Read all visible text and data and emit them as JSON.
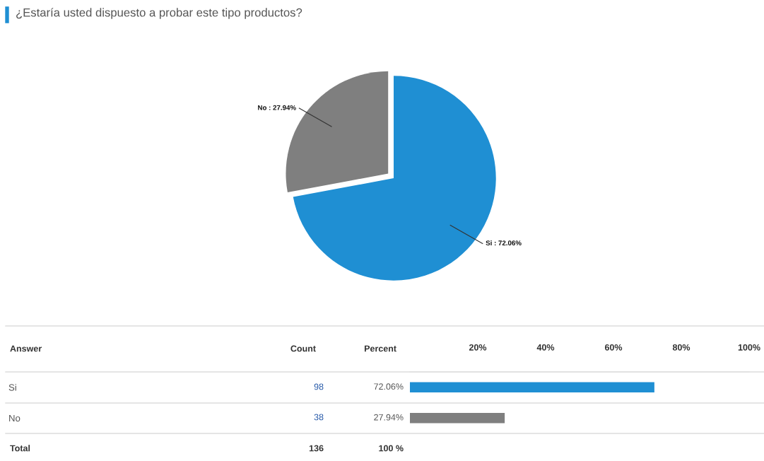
{
  "chart_data": [
    {
      "type": "pie",
      "title": "¿Estaría usted dispuesto a probar este tipo productos?",
      "categories": [
        "Si : 72.06%",
        "No : 27.94%"
      ],
      "values": [
        72.06,
        27.94
      ],
      "colors": [
        "#1f8fd3",
        "#7f7f7f"
      ]
    },
    {
      "type": "bar",
      "orientation": "horizontal",
      "categories": [
        "Si",
        "No"
      ],
      "values": [
        72.06,
        27.94
      ],
      "colors": [
        "#1f8fd3",
        "#7f7f7f"
      ],
      "value_labels": [
        "72.06%",
        "27.94%"
      ],
      "x2lim": [
        0,
        100
      ],
      "x2ticks": [
        {
          "value": 20,
          "label": "20%"
        },
        {
          "value": 40,
          "label": "40%"
        },
        {
          "value": 60,
          "label": "60%"
        },
        {
          "value": 80,
          "label": "80%"
        },
        {
          "value": 100,
          "label": "100%"
        }
      ],
      "annotations": [
        "Answer",
        "Count",
        "Percent",
        "98",
        "38",
        "Total",
        "136",
        "100 %"
      ]
    }
  ]
}
